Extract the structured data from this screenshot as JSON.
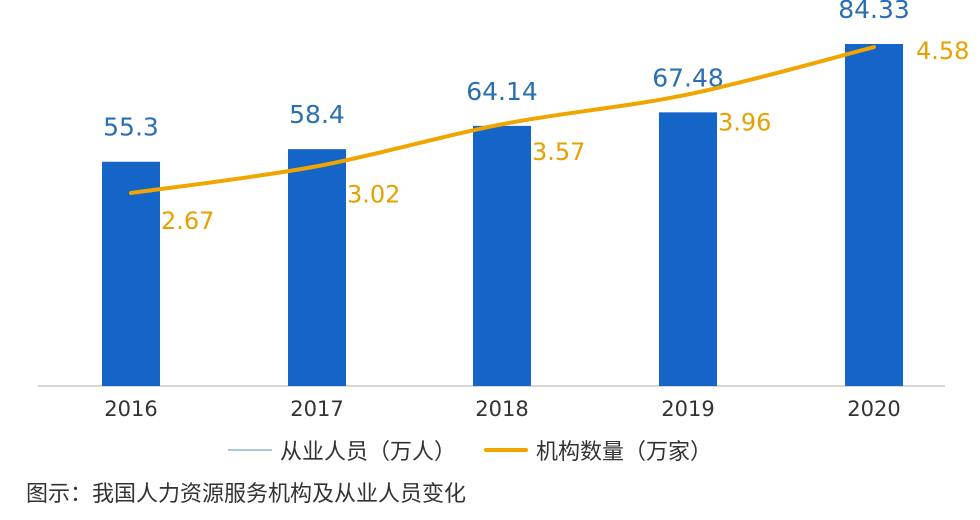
{
  "caption": "图示：我国人力资源服务机构及从业人员变化",
  "colors": {
    "bar": "#1565c8",
    "line": "#f0a500",
    "bar_label": "#2a6fb0",
    "line_label": "#e6a100",
    "axis": "#c8c8c8",
    "axis_text": "#333333"
  },
  "chart_data": {
    "type": "bar",
    "categories": [
      "2016",
      "2017",
      "2018",
      "2019",
      "2020"
    ],
    "series": [
      {
        "name": "从业人员（万人）",
        "type": "bar",
        "values": [
          55.3,
          58.4,
          64.14,
          67.48,
          84.33
        ],
        "labels": [
          "55.3",
          "58.4",
          "64.14",
          "67.48",
          "84.33"
        ]
      },
      {
        "name": "机构数量（万家）",
        "type": "line",
        "values": [
          2.67,
          3.02,
          3.57,
          3.96,
          4.58
        ],
        "labels": [
          "2.67",
          "3.02",
          "3.57",
          "3.96",
          "4.58"
        ]
      }
    ],
    "legend_position": "bottom",
    "grid": false
  }
}
